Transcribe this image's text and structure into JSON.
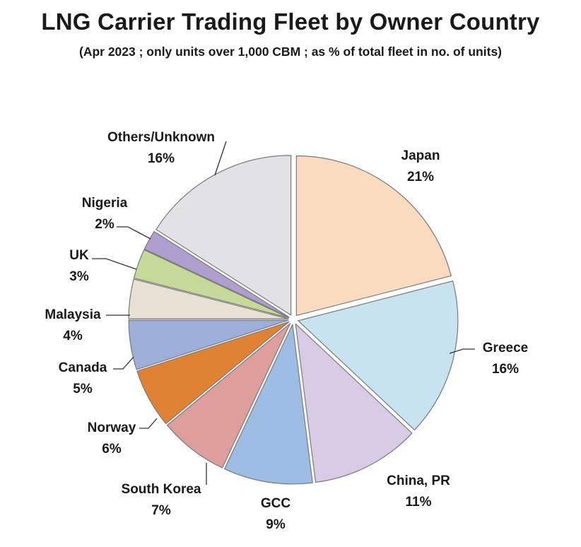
{
  "chart_data": {
    "type": "pie",
    "title": "LNG Carrier Trading Fleet by Owner Country",
    "subtitle": "(Apr 2023 ; only units over 1,000 CBM ; as % of total fleet in no. of units)",
    "unit": "%",
    "slices": [
      {
        "label": "Japan",
        "value": 21,
        "display": "21%",
        "color": "#FADBC0"
      },
      {
        "label": "Greece",
        "value": 16,
        "display": "16%",
        "color": "#C6E3EF"
      },
      {
        "label": "China, PR",
        "value": 11,
        "display": "11%",
        "color": "#D8CBE5"
      },
      {
        "label": "GCC",
        "value": 9,
        "display": "9%",
        "color": "#9DBCE3"
      },
      {
        "label": "South Korea",
        "value": 7,
        "display": "7%",
        "color": "#DE9E9B"
      },
      {
        "label": "Norway",
        "value": 6,
        "display": "6%",
        "color": "#DF8233"
      },
      {
        "label": "Canada",
        "value": 5,
        "display": "5%",
        "color": "#9DAED8"
      },
      {
        "label": "Malaysia",
        "value": 4,
        "display": "4%",
        "color": "#E6E1D2"
      },
      {
        "label": "UK",
        "value": 3,
        "display": "3%",
        "color": "#C6D998"
      },
      {
        "label": "Nigeria",
        "value": 2,
        "display": "2%",
        "color": "#AE9FCE"
      },
      {
        "label": "Others/Unknown",
        "value": 16,
        "display": "16%",
        "color": "#E2E2E4"
      }
    ]
  }
}
